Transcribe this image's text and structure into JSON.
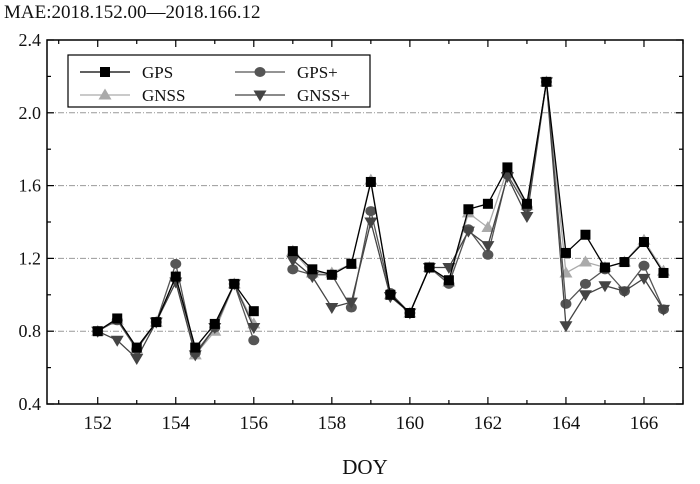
{
  "chart_data": {
    "type": "line",
    "title": "MAE:2018.152.00—2018.166.12",
    "xlabel": "DOY",
    "ylabel": "",
    "xlim": [
      150.7,
      167
    ],
    "ylim": [
      0.4,
      2.4
    ],
    "xticks": [
      152,
      154,
      156,
      158,
      160,
      162,
      164,
      166
    ],
    "yticks": [
      0.4,
      0.8,
      1.2,
      1.6,
      2.0,
      2.4
    ],
    "ytick_labels": [
      "0.4",
      "0.8",
      "1.2",
      "1.6",
      "2.0",
      "2.4"
    ],
    "grid_y": [
      0.8,
      1.2,
      1.6,
      2.0
    ],
    "legend_position": "top-left",
    "x": [
      152,
      152.5,
      153,
      153.5,
      154,
      154.5,
      155,
      155.5,
      156,
      156.5,
      157,
      157.5,
      158,
      158.5,
      159,
      159.5,
      160,
      160.5,
      161,
      161.5,
      162,
      162.5,
      163,
      163.5,
      164,
      164.5,
      165,
      165.5,
      166,
      166.5
    ],
    "series": [
      {
        "name": "GPS",
        "marker": "square",
        "color": "#000000",
        "values": [
          0.8,
          0.87,
          0.71,
          0.85,
          1.1,
          0.71,
          0.84,
          1.06,
          0.91,
          null,
          1.24,
          1.14,
          1.11,
          1.17,
          1.62,
          1.0,
          0.9,
          1.15,
          1.08,
          1.47,
          1.5,
          1.7,
          1.5,
          2.17,
          1.23,
          1.33,
          1.15,
          1.18,
          1.29,
          1.12
        ]
      },
      {
        "name": "GPS+",
        "marker": "circle",
        "color": "#555555",
        "values": [
          0.8,
          0.86,
          0.7,
          0.85,
          1.17,
          0.68,
          0.82,
          1.06,
          0.75,
          null,
          1.14,
          1.11,
          1.11,
          0.93,
          1.46,
          1.01,
          0.9,
          1.15,
          1.06,
          1.36,
          1.22,
          1.66,
          1.48,
          2.17,
          0.95,
          1.06,
          1.14,
          1.02,
          1.16,
          0.92
        ]
      },
      {
        "name": "GNSS",
        "marker": "triangle-up",
        "color": "#aaaaaa",
        "values": [
          0.8,
          0.86,
          0.7,
          0.85,
          1.1,
          0.67,
          0.8,
          1.06,
          0.84,
          null,
          1.24,
          1.12,
          1.12,
          1.17,
          1.63,
          1.0,
          0.9,
          1.15,
          1.07,
          1.45,
          1.37,
          1.69,
          1.49,
          2.17,
          1.12,
          1.18,
          1.15,
          1.18,
          1.3,
          1.13
        ]
      },
      {
        "name": "GNSS+",
        "marker": "triangle-down",
        "color": "#444444",
        "values": [
          0.8,
          0.75,
          0.65,
          0.85,
          1.07,
          0.67,
          0.82,
          1.06,
          0.82,
          null,
          1.19,
          1.1,
          0.93,
          0.96,
          1.4,
          0.99,
          0.9,
          1.15,
          1.15,
          1.35,
          1.27,
          1.65,
          1.43,
          2.17,
          0.83,
          1.0,
          1.05,
          1.02,
          1.09,
          0.92
        ]
      }
    ]
  }
}
